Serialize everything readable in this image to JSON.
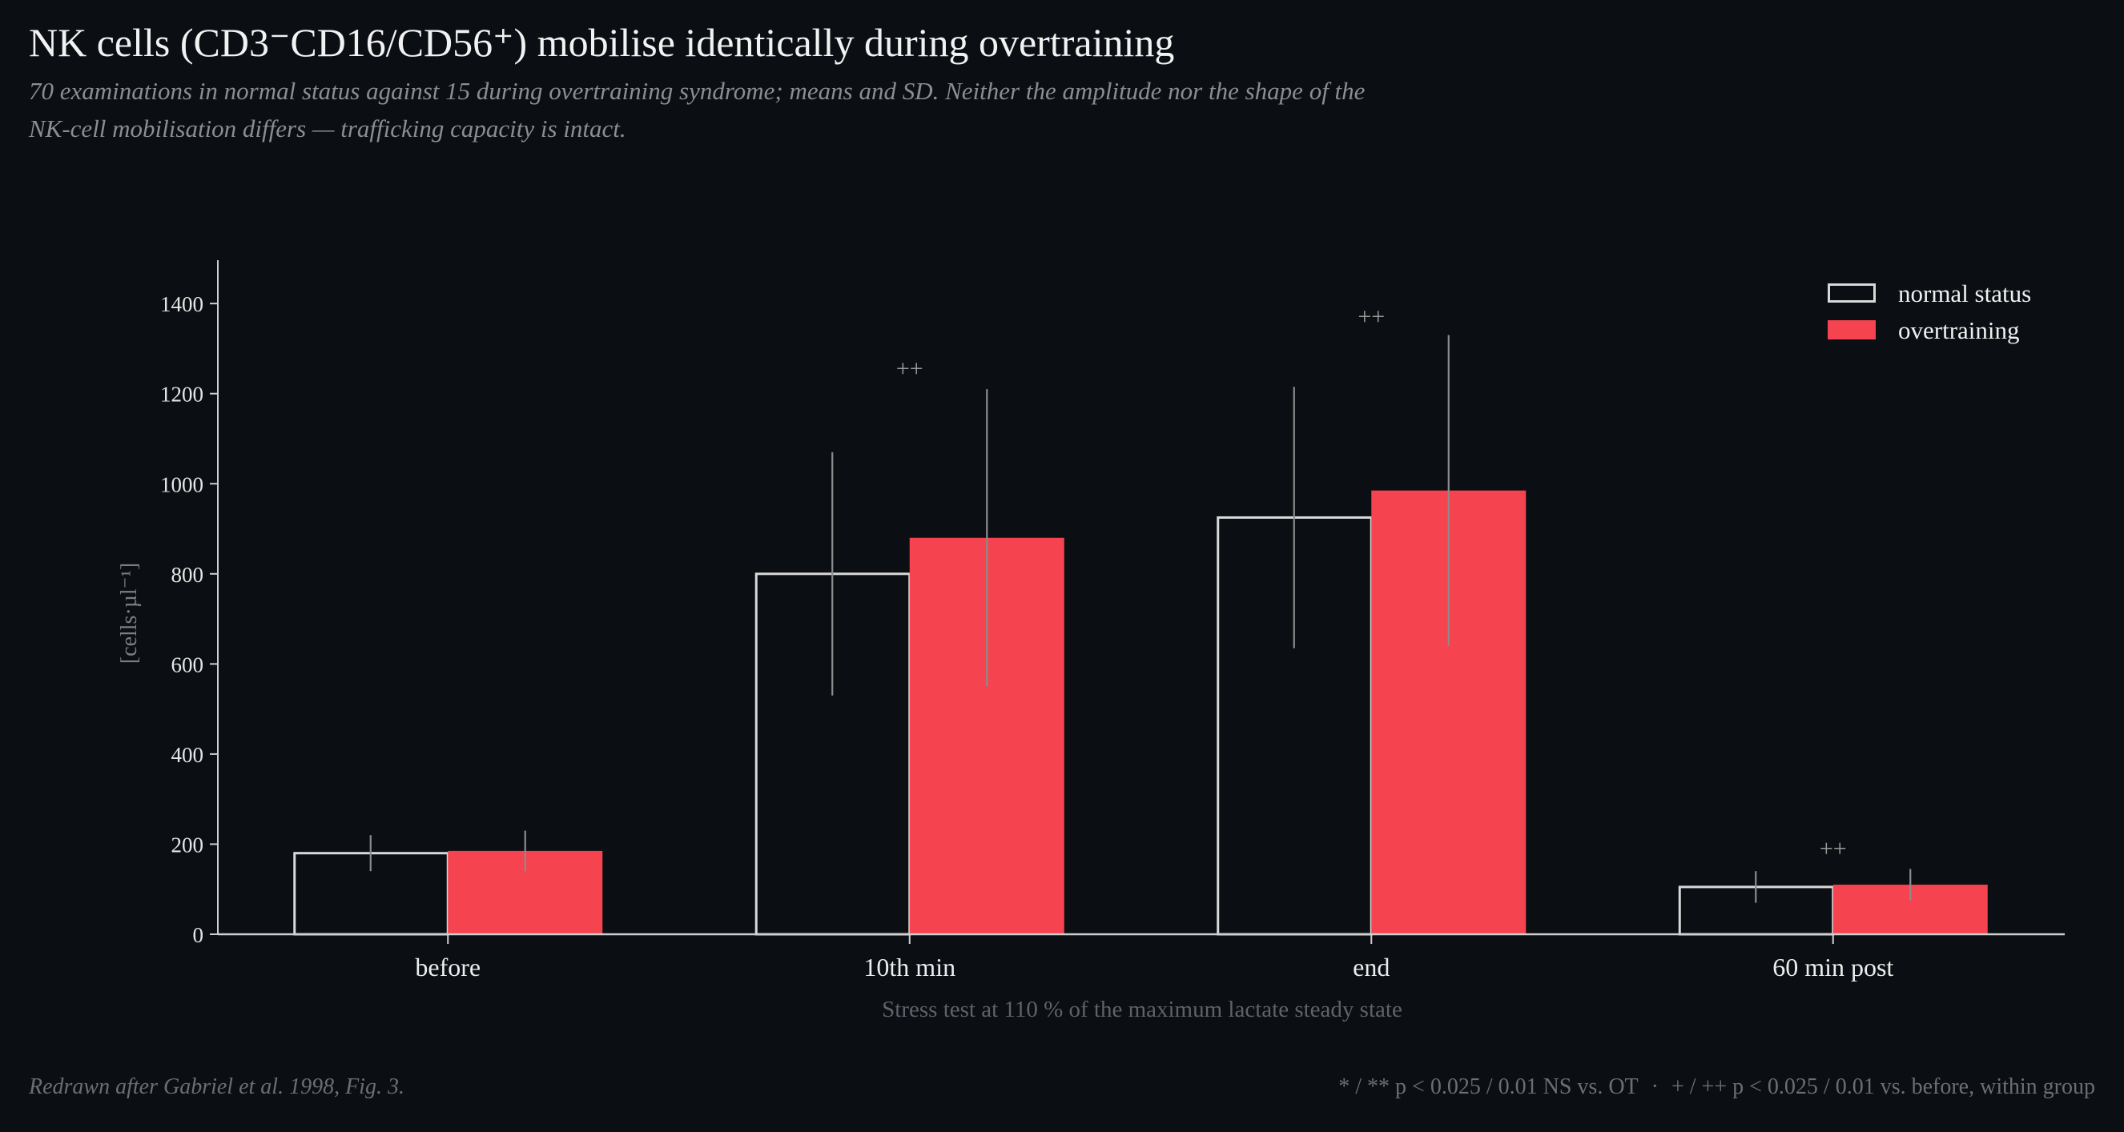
{
  "chart_data": {
    "type": "bar",
    "title": "NK cells (CD3⁻CD16/CD56⁺) mobilise identically during overtraining",
    "subtitle": "70 examinations in normal status against 15 during overtraining syndrome; means and SD. Neither the amplitude nor the shape of the NK-cell mobilisation differs — trafficking capacity is intact.",
    "xlabel": "Stress test at 110 % of the maximum lactate steady state",
    "ylabel": "[cells·µl⁻¹]",
    "ylim": [
      0,
      1500
    ],
    "yticks": [
      0,
      200,
      400,
      600,
      800,
      1000,
      1200,
      1400
    ],
    "categories": [
      "before",
      "10th min",
      "end",
      "60 min post"
    ],
    "series": [
      {
        "name": "normal status",
        "values": [
          180,
          800,
          925,
          105
        ],
        "sd": [
          40,
          270,
          290,
          35
        ],
        "fill": "none",
        "color": "#d9d9d9"
      },
      {
        "name": "overtraining",
        "values": [
          185,
          880,
          985,
          110
        ],
        "sd": [
          45,
          330,
          345,
          35
        ],
        "fill": "#f5444f",
        "color": "#f5444f"
      }
    ],
    "annotations": [
      {
        "category": "10th min",
        "text": "++",
        "y": 1260
      },
      {
        "category": "end",
        "text": "++",
        "y": 1375
      },
      {
        "category": "60 min post",
        "text": "++",
        "y": 195
      }
    ],
    "legend": {
      "position": "top-right"
    },
    "grid": false
  },
  "footer": {
    "source": "Redrawn after Gabriel et al. 1998, Fig. 3.",
    "note_ns": "* / ** p < 0.025 / 0.01 NS vs. OT",
    "separator": "·",
    "note_within": "+ / ++ p < 0.025 / 0.01 vs. before, within group"
  },
  "colors": {
    "background": "#0b0f13",
    "axis": "#cfcfcf",
    "error_bar": "#8c8c8c",
    "annotation": "#9a9a9a",
    "muted_text": "#6b6f74"
  }
}
